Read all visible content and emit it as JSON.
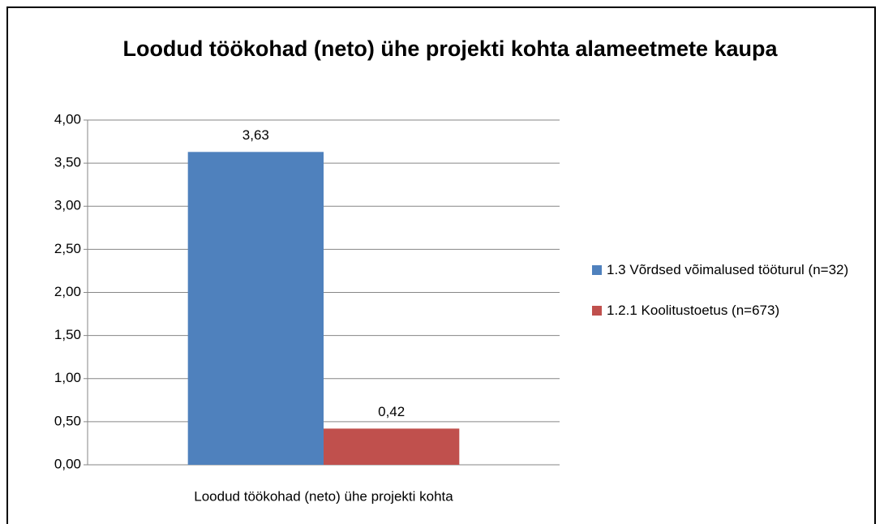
{
  "chart_data": {
    "type": "bar",
    "title": "Loodud töökohad (neto) ühe projekti kohta alameetmete kaupa",
    "categories": [
      "Loodud töökohad (neto) ühe projekti kohta"
    ],
    "series": [
      {
        "name": "1.3 Võrdsed võimalused tööturul (n=32)",
        "color": "#4f81bd",
        "values": [
          3.63
        ],
        "value_labels": [
          "3,63"
        ]
      },
      {
        "name": "1.2.1 Koolitustoetus (n=673)",
        "color": "#c0504d",
        "values": [
          0.42
        ],
        "value_labels": [
          "0,42"
        ]
      }
    ],
    "ylim": [
      0,
      4
    ],
    "yticks": [
      {
        "value": 0,
        "label": "0,00"
      },
      {
        "value": 0.5,
        "label": "0,50"
      },
      {
        "value": 1,
        "label": "1,00"
      },
      {
        "value": 1.5,
        "label": "1,50"
      },
      {
        "value": 2,
        "label": "2,00"
      },
      {
        "value": 2.5,
        "label": "2,50"
      },
      {
        "value": 3,
        "label": "3,00"
      },
      {
        "value": 3.5,
        "label": "3,50"
      },
      {
        "value": 4,
        "label": "4,00"
      }
    ],
    "grid": true,
    "legend": "right"
  }
}
